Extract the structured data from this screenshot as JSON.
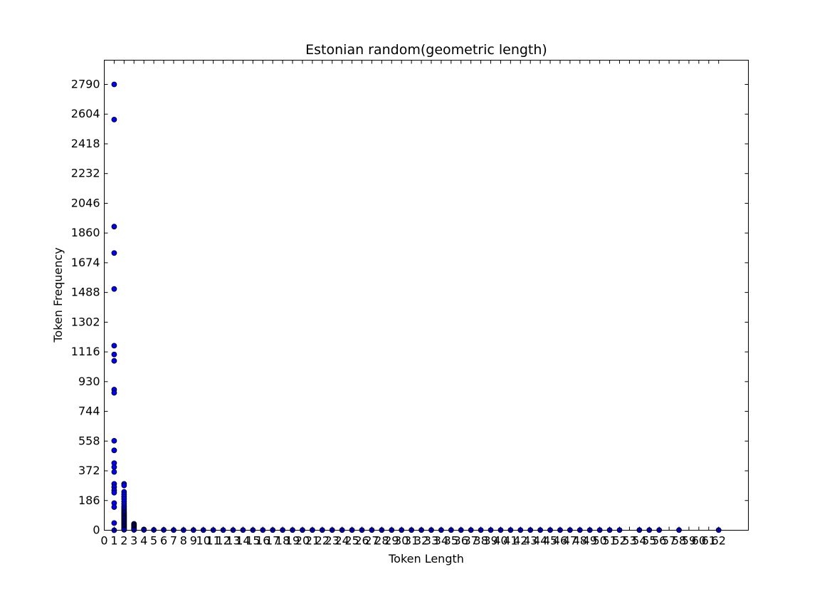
{
  "chart_data": {
    "type": "scatter",
    "title": "Estonian random(geometric length)",
    "xlabel": "Token Length",
    "ylabel": "Token Frequency",
    "xlim": [
      0,
      65
    ],
    "ylim": [
      0,
      2790
    ],
    "grid": false,
    "marker_color": "#0000ff",
    "xticks": [
      "0",
      "1",
      "2",
      "3",
      "4",
      "5",
      "6",
      "7",
      "8",
      "9",
      "10",
      "11",
      "12",
      "13",
      "14",
      "15",
      "16",
      "17",
      "18",
      "19",
      "20",
      "21",
      "22",
      "23",
      "24",
      "25",
      "26",
      "27",
      "28",
      "29",
      "30",
      "31",
      "32",
      "33",
      "34",
      "35",
      "36",
      "37",
      "38",
      "39",
      "40",
      "41",
      "42",
      "43",
      "44",
      "45",
      "46",
      "47",
      "48",
      "49",
      "50",
      "51",
      "52",
      "53",
      "54",
      "55",
      "56",
      "57",
      "58",
      "59",
      "60",
      "61",
      "62"
    ],
    "yticks": [
      "0",
      "186",
      "372",
      "558",
      "744",
      "930",
      "1116",
      "1302",
      "1488",
      "1674",
      "1860",
      "2046",
      "2232",
      "2418",
      "2604",
      "2790"
    ],
    "points": [
      [
        1,
        2790
      ],
      [
        1,
        2570
      ],
      [
        1,
        1900
      ],
      [
        1,
        1735
      ],
      [
        1,
        1510
      ],
      [
        1,
        1155
      ],
      [
        1,
        1100
      ],
      [
        1,
        1060
      ],
      [
        1,
        880
      ],
      [
        1,
        860
      ],
      [
        1,
        560
      ],
      [
        1,
        500
      ],
      [
        1,
        420
      ],
      [
        1,
        395
      ],
      [
        1,
        365
      ],
      [
        1,
        290
      ],
      [
        1,
        270
      ],
      [
        1,
        250
      ],
      [
        1,
        235
      ],
      [
        1,
        170
      ],
      [
        1,
        145
      ],
      [
        1,
        45
      ],
      [
        1,
        0
      ],
      [
        2,
        290
      ],
      [
        2,
        280
      ],
      [
        2,
        240
      ],
      [
        2,
        225
      ],
      [
        2,
        210
      ],
      [
        2,
        195
      ],
      [
        2,
        180
      ],
      [
        2,
        165
      ],
      [
        2,
        150
      ],
      [
        2,
        140
      ],
      [
        2,
        130
      ],
      [
        2,
        120
      ],
      [
        2,
        112
      ],
      [
        2,
        105
      ],
      [
        2,
        98
      ],
      [
        2,
        92
      ],
      [
        2,
        86
      ],
      [
        2,
        80
      ],
      [
        2,
        74
      ],
      [
        2,
        68
      ],
      [
        2,
        62
      ],
      [
        2,
        56
      ],
      [
        2,
        50
      ],
      [
        2,
        44
      ],
      [
        2,
        38
      ],
      [
        2,
        32
      ],
      [
        2,
        26
      ],
      [
        2,
        20
      ],
      [
        2,
        14
      ],
      [
        2,
        8
      ],
      [
        2,
        3
      ],
      [
        3,
        40
      ],
      [
        3,
        35
      ],
      [
        3,
        30
      ],
      [
        3,
        25
      ],
      [
        3,
        20
      ],
      [
        3,
        15
      ],
      [
        3,
        10
      ],
      [
        3,
        5
      ],
      [
        3,
        2
      ],
      [
        4,
        5
      ],
      [
        4,
        2
      ],
      [
        5,
        2
      ],
      [
        6,
        2
      ],
      [
        7,
        1
      ],
      [
        8,
        1
      ],
      [
        9,
        1
      ],
      [
        10,
        1
      ],
      [
        11,
        1
      ],
      [
        12,
        1
      ],
      [
        13,
        1
      ],
      [
        14,
        1
      ],
      [
        15,
        1
      ],
      [
        16,
        1
      ],
      [
        17,
        1
      ],
      [
        18,
        1
      ],
      [
        19,
        1
      ],
      [
        20,
        1
      ],
      [
        21,
        1
      ],
      [
        22,
        1
      ],
      [
        23,
        1
      ],
      [
        24,
        1
      ],
      [
        25,
        1
      ],
      [
        26,
        1
      ],
      [
        27,
        1
      ],
      [
        28,
        1
      ],
      [
        29,
        1
      ],
      [
        30,
        1
      ],
      [
        31,
        1
      ],
      [
        32,
        1
      ],
      [
        33,
        1
      ],
      [
        34,
        1
      ],
      [
        35,
        1
      ],
      [
        36,
        1
      ],
      [
        37,
        1
      ],
      [
        38,
        1
      ],
      [
        39,
        1
      ],
      [
        40,
        1
      ],
      [
        41,
        1
      ],
      [
        42,
        1
      ],
      [
        43,
        1
      ],
      [
        44,
        1
      ],
      [
        45,
        1
      ],
      [
        46,
        1
      ],
      [
        47,
        1
      ],
      [
        48,
        1
      ],
      [
        49,
        1
      ],
      [
        50,
        1
      ],
      [
        51,
        1
      ],
      [
        52,
        1
      ],
      [
        54,
        1
      ],
      [
        55,
        1
      ],
      [
        56,
        1
      ],
      [
        58,
        1
      ],
      [
        62,
        1
      ]
    ]
  }
}
